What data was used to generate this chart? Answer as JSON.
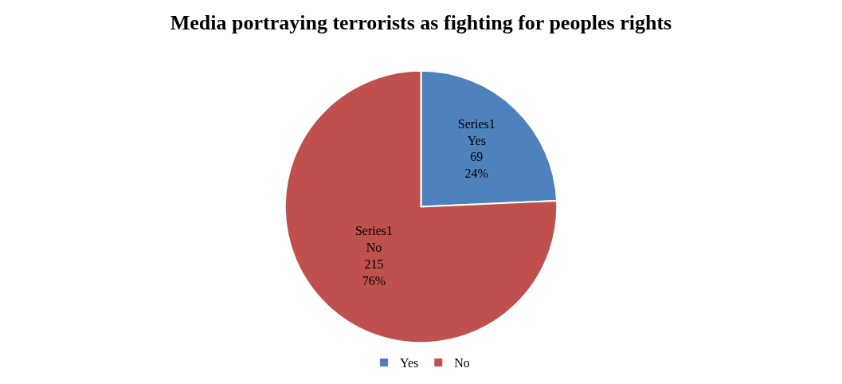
{
  "chart_data": {
    "type": "pie",
    "title": "Media portraying terrorists as fighting for peoples rights",
    "categories": [
      "Yes",
      "No"
    ],
    "values": [
      69,
      215
    ],
    "colors": [
      "#4f81bd",
      "#c0504d"
    ],
    "value_labels": [
      "Series1\nYes\n69\n24%",
      "Series1\nNo\n215\n76%"
    ],
    "legend": "bottom"
  }
}
